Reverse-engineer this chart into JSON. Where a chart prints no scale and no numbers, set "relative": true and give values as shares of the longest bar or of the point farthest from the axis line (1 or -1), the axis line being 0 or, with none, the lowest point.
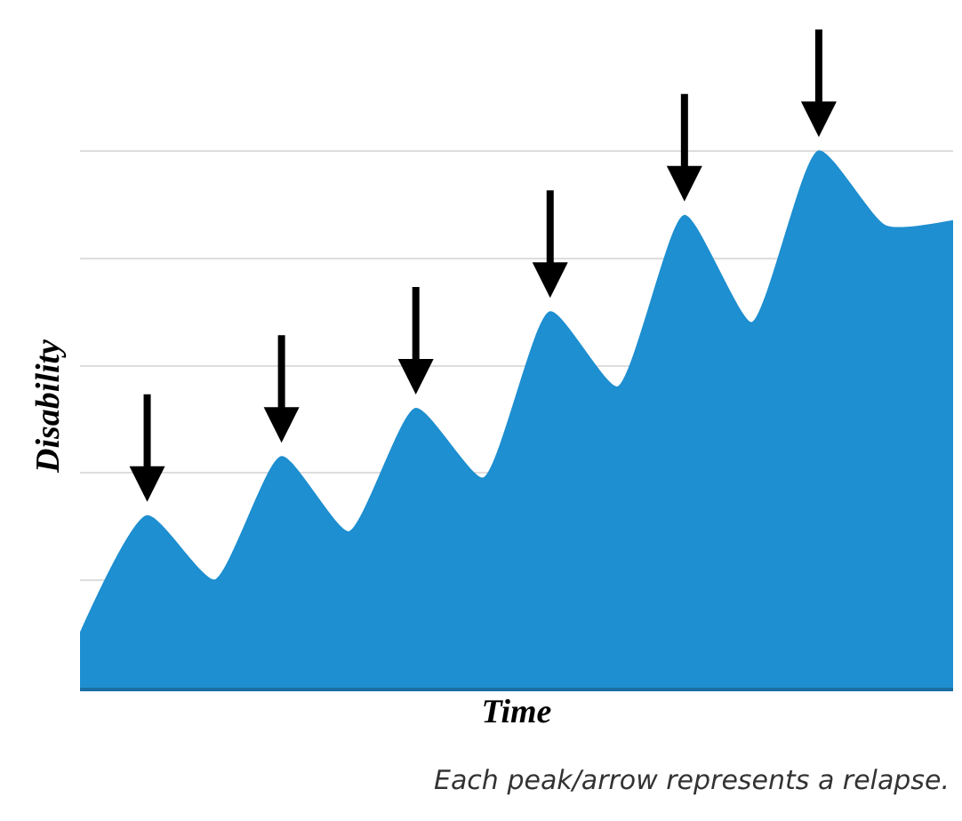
{
  "chart_data": {
    "type": "area",
    "relative": true,
    "xlabel": "Time",
    "ylabel": "Disability",
    "grid": "y",
    "categories": [
      null,
      null,
      null,
      null,
      null,
      null,
      null,
      null,
      null,
      null,
      null,
      null,
      null,
      null
    ],
    "series": [
      {
        "color": "#1e8fd0",
        "values": [
          0.1,
          0.32,
          0.2,
          0.43,
          0.29,
          0.52,
          0.39,
          0.7,
          0.56,
          0.88,
          0.68,
          1.0,
          0.86,
          0.87
        ]
      }
    ],
    "annotations": [
      "Each peak/arrow represents a relapse."
    ]
  }
}
